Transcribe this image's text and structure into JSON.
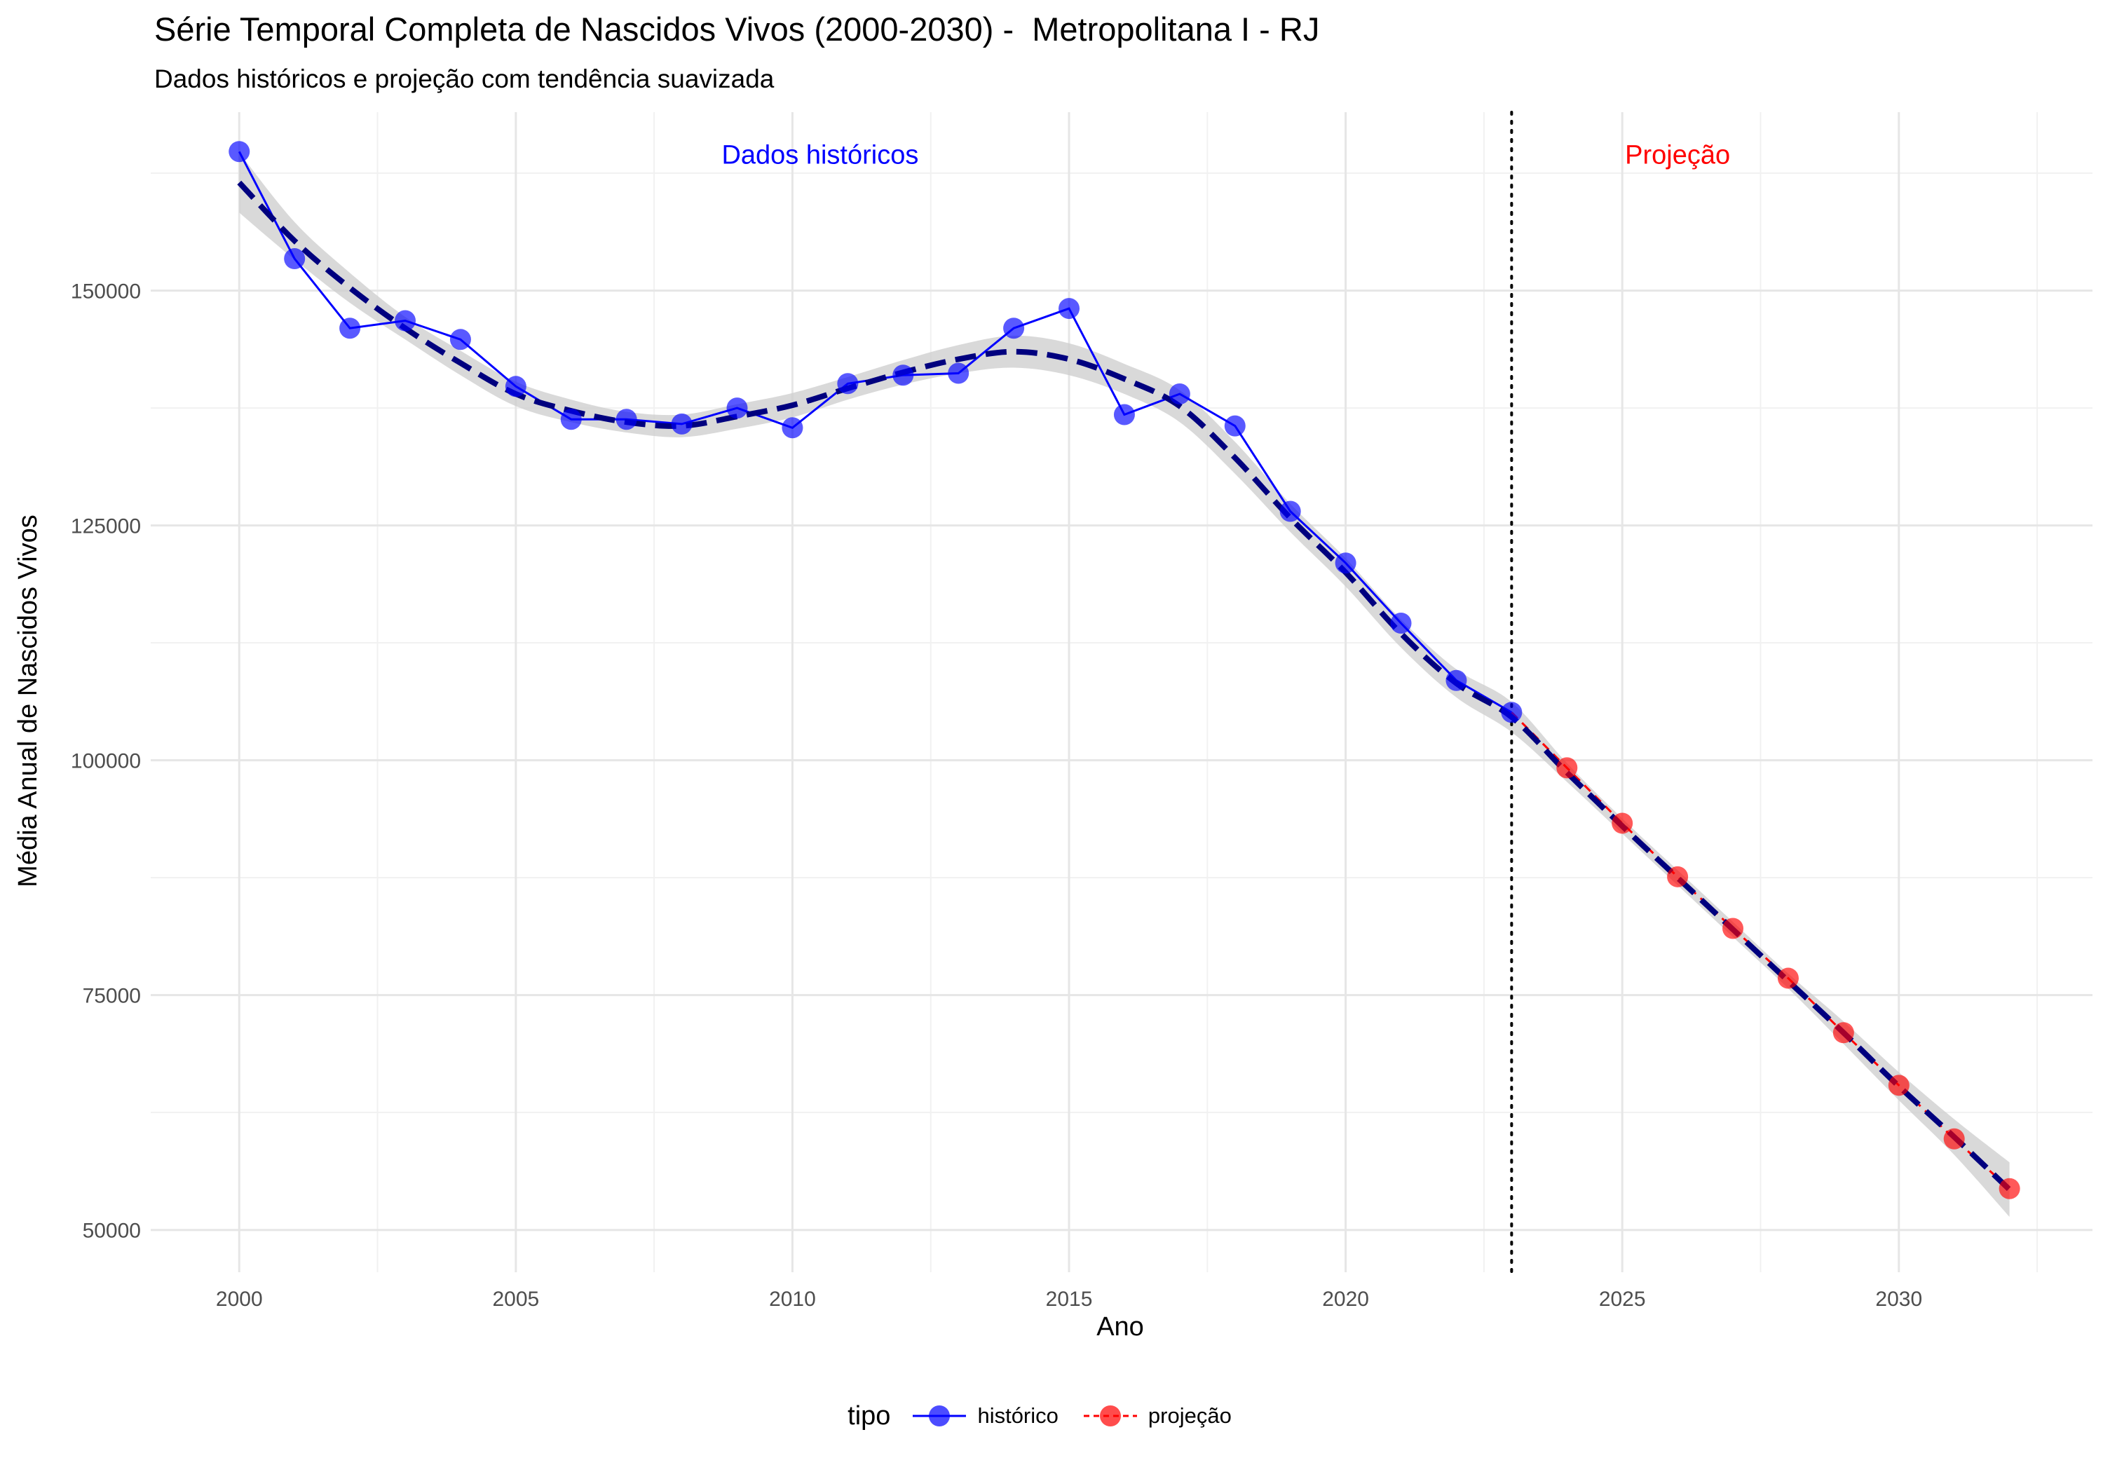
{
  "chart_data": {
    "type": "line",
    "title": "Série Temporal Completa de Nascidos Vivos (2000-2030) -  Metropolitana I - RJ",
    "subtitle": "Dados históricos e projeção com tendência suavizada",
    "xlabel": "Ano",
    "ylabel": "Média Anual de Nascidos Vivos",
    "xlim": [
      1998.4,
      2033.5
    ],
    "ylim": [
      45500,
      169000
    ],
    "x_ticks": [
      2000,
      2005,
      2010,
      2015,
      2020,
      2025,
      2030
    ],
    "x_tick_labels": [
      "2000",
      "2005",
      "2010",
      "2015",
      "2020",
      "2025",
      "2030"
    ],
    "y_ticks": [
      50000,
      75000,
      100000,
      125000,
      150000
    ],
    "y_tick_labels": [
      "50000",
      "75000",
      "100000",
      "125000",
      "150000"
    ],
    "grid": true,
    "divider_x": 2023,
    "annotations": [
      {
        "text": "Dados históricos",
        "x": 2010.5,
        "y": 164500,
        "color": "#0000ff"
      },
      {
        "text": "Projeção",
        "x": 2026,
        "y": 164500,
        "color": "#ff0000"
      }
    ],
    "legend": {
      "title": "tipo",
      "position": "bottom"
    },
    "series": [
      {
        "name": "histórico",
        "color": "#0000ff",
        "x": [
          2000,
          2001,
          2002,
          2003,
          2004,
          2005,
          2006,
          2007,
          2008,
          2009,
          2010,
          2011,
          2012,
          2013,
          2014,
          2015,
          2016,
          2017,
          2018,
          2019,
          2020,
          2021,
          2022,
          2023
        ],
        "values": [
          164800,
          153400,
          146000,
          146800,
          144800,
          139800,
          136300,
          136300,
          135800,
          137500,
          135400,
          140100,
          141000,
          141200,
          146000,
          148100,
          136800,
          139000,
          135600,
          126500,
          121000,
          114600,
          108500,
          105100
        ]
      },
      {
        "name": "projeção",
        "color": "#ff0000",
        "x": [
          2023,
          2024,
          2025,
          2026,
          2027,
          2028,
          2029,
          2030,
          2031,
          2032
        ],
        "values": [
          105100,
          99200,
          93300,
          87600,
          82100,
          76800,
          71000,
          65400,
          59700,
          54400
        ]
      }
    ],
    "trend": {
      "color": "#00007f",
      "ribbon_color": "#cccccc",
      "x": [
        2000,
        2001,
        2002,
        2003,
        2004,
        2005,
        2006,
        2007,
        2008,
        2009,
        2010,
        2011,
        2012,
        2013,
        2014,
        2015,
        2016,
        2017,
        2018,
        2019,
        2020,
        2021,
        2022,
        2023,
        2024,
        2025,
        2026,
        2027,
        2028,
        2029,
        2030,
        2031,
        2032
      ],
      "values": [
        161500,
        155300,
        150300,
        146000,
        142300,
        139000,
        137200,
        136000,
        135600,
        136600,
        137800,
        139600,
        141300,
        142700,
        143500,
        142700,
        140600,
        137700,
        132200,
        125800,
        120000,
        113500,
        108200,
        104600,
        98700,
        93000,
        87500,
        82000,
        76500,
        71000,
        65300,
        59900,
        54300
      ],
      "lower": [
        158300,
        153300,
        148700,
        144800,
        141000,
        137700,
        136000,
        134900,
        134400,
        135300,
        136500,
        138400,
        140000,
        141200,
        141800,
        141000,
        139000,
        136000,
        130500,
        124300,
        118500,
        112000,
        106700,
        103000,
        97700,
        92200,
        86700,
        81200,
        75700,
        69800,
        63800,
        58000,
        51400
      ],
      "upper": [
        164700,
        157300,
        151900,
        147200,
        143600,
        140300,
        138400,
        137100,
        136800,
        137900,
        139100,
        140800,
        142600,
        144200,
        145200,
        144400,
        142200,
        139400,
        133900,
        127300,
        121500,
        115000,
        109700,
        106200,
        99700,
        93800,
        88300,
        82800,
        77300,
        72200,
        66800,
        61800,
        57200
      ]
    }
  }
}
